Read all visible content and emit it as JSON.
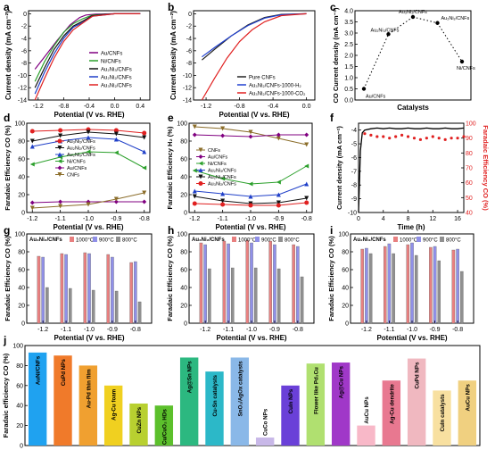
{
  "chart_data": [
    {
      "panel": "a",
      "type": "line",
      "xlabel": "Potential (V vs. RHE)",
      "ylabel": "Current density (mA cm⁻²)",
      "xlim": [
        -1.35,
        0.55
      ],
      "ylim": [
        -14,
        0.5
      ],
      "xticks": [
        -1.2,
        -0.8,
        -0.4,
        0.0,
        0.4
      ],
      "yticks": [
        0,
        -2,
        -4,
        -6,
        -8,
        -10,
        -12,
        -14
      ],
      "legend_position": "lower-right",
      "series": [
        {
          "name": "Au/CNFs",
          "color": "#800080",
          "x": [
            -1.25,
            -1.1,
            -0.9,
            -0.7,
            -0.55,
            -0.45,
            -0.3,
            0.0,
            0.4
          ],
          "y": [
            -9.0,
            -7.0,
            -4.3,
            -1.8,
            -0.6,
            -0.2,
            -0.05,
            0.0,
            0.0
          ]
        },
        {
          "name": "Ni/CNFs",
          "color": "#2ca02c",
          "x": [
            -1.25,
            -1.1,
            -0.95,
            -0.8,
            -0.65,
            -0.5,
            -0.35,
            0.0,
            0.4
          ],
          "y": [
            -11.0,
            -7.8,
            -5.2,
            -3.0,
            -1.6,
            -0.8,
            -0.2,
            0.0,
            0.0
          ]
        },
        {
          "name": "Au₂Ni₃/CNFs",
          "color": "#111111",
          "x": [
            -1.25,
            -1.1,
            -0.95,
            -0.8,
            -0.65,
            -0.5,
            -0.35,
            0.0,
            0.4
          ],
          "y": [
            -12.0,
            -8.8,
            -5.8,
            -3.6,
            -2.0,
            -1.2,
            -0.3,
            0.0,
            0.0
          ]
        },
        {
          "name": "Au₂Ni₂/CNFs",
          "color": "#1f3fc8",
          "x": [
            -1.25,
            -1.1,
            -0.95,
            -0.8,
            -0.65,
            -0.5,
            -0.35,
            0.0,
            0.4
          ],
          "y": [
            -13.0,
            -9.5,
            -6.5,
            -4.0,
            -2.2,
            -1.4,
            -0.4,
            0.0,
            0.0
          ]
        },
        {
          "name": "Au₃Ni₂/CNFs",
          "color": "#e02020",
          "x": [
            -1.25,
            -1.1,
            -0.95,
            -0.8,
            -0.65,
            -0.5,
            -0.35,
            0.0,
            0.4
          ],
          "y": [
            -14.0,
            -10.5,
            -7.2,
            -4.5,
            -2.6,
            -1.5,
            -0.4,
            0.0,
            0.0
          ]
        }
      ]
    },
    {
      "panel": "b",
      "type": "line",
      "xlabel": "Potential (V vs. RHE)",
      "ylabel": "Current density (mA cm⁻²)",
      "xlim": [
        -1.35,
        0.1
      ],
      "ylim": [
        -14,
        0.5
      ],
      "xticks": [
        -1.2,
        -0.8,
        -0.4,
        0.0
      ],
      "yticks": [
        0,
        -2,
        -4,
        -6,
        -8,
        -10,
        -12,
        -14
      ],
      "legend_position": "lower-right",
      "series": [
        {
          "name": "Pure CNFs",
          "color": "#222222",
          "x": [
            -1.25,
            -1.1,
            -0.9,
            -0.7,
            -0.5,
            -0.3,
            0.0
          ],
          "y": [
            -7.5,
            -5.8,
            -3.6,
            -1.8,
            -0.6,
            -0.1,
            0.0
          ]
        },
        {
          "name": "Au₃Ni₂/CNFs-1000-H₂",
          "color": "#2040d0",
          "x": [
            -1.25,
            -1.1,
            -0.9,
            -0.7,
            -0.5,
            -0.3,
            0.0
          ],
          "y": [
            -7.0,
            -5.5,
            -3.6,
            -1.9,
            -0.7,
            -0.15,
            0.0
          ]
        },
        {
          "name": "Au₃Ni₂/CNFs-1000-CO₂",
          "color": "#e02020",
          "x": [
            -1.25,
            -1.1,
            -0.95,
            -0.8,
            -0.65,
            -0.5,
            -0.3,
            0.0
          ],
          "y": [
            -14.0,
            -10.5,
            -7.2,
            -4.5,
            -2.6,
            -1.3,
            -0.3,
            0.0
          ]
        }
      ]
    },
    {
      "panel": "c",
      "type": "scatter",
      "xlabel": "Catalysts",
      "ylabel": "CO Current density (mA cm⁻²)",
      "ylim": [
        0,
        4.0
      ],
      "yticks": [
        0.0,
        0.5,
        1.0,
        1.5,
        2.0,
        2.5,
        3.0,
        3.5,
        4.0
      ],
      "categories": [
        "Au/CNFs",
        "Au₂Ni₃/CNFs",
        "Au₃Ni₂/CNFs",
        "Au₂Ni₂/CNFs",
        "Ni/CNFs"
      ],
      "values": [
        0.5,
        2.95,
        3.72,
        3.45,
        1.72
      ]
    },
    {
      "panel": "d",
      "type": "line",
      "xlabel": "Potential (V vs. RHE)",
      "ylabel": "Faradaic Efficiency CO (%)",
      "x": [
        -1.2,
        -1.1,
        -1.0,
        -0.9,
        -0.8
      ],
      "ylim": [
        0,
        100
      ],
      "yticks": [
        0,
        20,
        40,
        60,
        80,
        100
      ],
      "legend_position": "center-left",
      "series": [
        {
          "name": "Au₃Ni₂/CNFs",
          "color": "#e02020",
          "marker": "circle",
          "y": [
            91,
            92,
            93,
            92,
            89
          ]
        },
        {
          "name": "Au₂Ni₂/CNFs",
          "color": "#111111",
          "marker": "triangle-down",
          "y": [
            80,
            86,
            90,
            88,
            84
          ]
        },
        {
          "name": "Au₂Ni₃/CNFs",
          "color": "#1f3fc8",
          "marker": "triangle",
          "y": [
            74,
            80,
            84,
            82,
            68
          ]
        },
        {
          "name": "Ni/CNFs",
          "color": "#2ca02c",
          "marker": "triangle-left",
          "y": [
            54,
            62,
            68,
            67,
            50
          ]
        },
        {
          "name": "Au/CNFs",
          "color": "#800080",
          "marker": "diamond",
          "y": [
            11,
            12,
            12,
            12,
            12
          ]
        },
        {
          "name": "CNFs",
          "color": "#8b6d2a",
          "marker": "triangle-down",
          "y": [
            5,
            7,
            9,
            15,
            22
          ]
        }
      ]
    },
    {
      "panel": "e",
      "type": "line",
      "xlabel": "Potential (V vs. RHE)",
      "ylabel": "Faradaic Efficiency H₂ (%)",
      "x": [
        -1.2,
        -1.1,
        -1.0,
        -0.9,
        -0.8
      ],
      "ylim": [
        0,
        100
      ],
      "yticks": [
        0,
        20,
        40,
        60,
        80,
        100
      ],
      "legend_position": "top-left",
      "series": [
        {
          "name": "CNFs",
          "color": "#8b6d2a",
          "marker": "triangle-down",
          "y": [
            96,
            94,
            90,
            83,
            76
          ]
        },
        {
          "name": "Au/CNFs",
          "color": "#800080",
          "marker": "diamond",
          "y": [
            87,
            86,
            85,
            87,
            87
          ]
        },
        {
          "name": "Ni/CNFs",
          "color": "#2ca02c",
          "marker": "triangle-left",
          "y": [
            47,
            38,
            32,
            34,
            52
          ]
        },
        {
          "name": "Au₂Ni₃/CNFs",
          "color": "#1f3fc8",
          "marker": "triangle",
          "y": [
            24,
            21,
            18,
            20,
            32
          ]
        },
        {
          "name": "Au₂Ni₂/CNFs",
          "color": "#111111",
          "marker": "triangle-down",
          "y": [
            18,
            13,
            10,
            11,
            16
          ]
        },
        {
          "name": "Au₃Ni₂/CNFs",
          "color": "#e02020",
          "marker": "circle",
          "y": [
            10,
            9,
            8,
            8,
            11
          ]
        }
      ]
    },
    {
      "panel": "f",
      "type": "line",
      "xlabel": "Time (h)",
      "ylabel": "Current density (mA cm⁻²)",
      "ylabel_right": "Faradaic Efficiency CO (%)",
      "xlim": [
        0,
        17
      ],
      "ylim": [
        -10,
        -3.5
      ],
      "ylim_right": [
        40,
        100
      ],
      "xticks": [
        0,
        4,
        8,
        12,
        16
      ],
      "yticks": [
        -4,
        -5,
        -6,
        -7,
        -8,
        -9,
        -10
      ],
      "yticks_right": [
        40,
        50,
        60,
        70,
        80,
        90,
        100
      ],
      "current_x": [
        0,
        0.3,
        0.6,
        1,
        2,
        3,
        4,
        5,
        6,
        7,
        8,
        9,
        10,
        11,
        12,
        13,
        14,
        15,
        16,
        17
      ],
      "current_y": [
        -10,
        -5.5,
        -4.2,
        -4.0,
        -3.9,
        -3.85,
        -3.9,
        -3.85,
        -3.9,
        -3.9,
        -3.85,
        -3.9,
        -3.9,
        -3.85,
        -3.9,
        -3.9,
        -3.85,
        -3.9,
        -3.9,
        -3.85
      ],
      "fe_x": [
        1,
        2,
        3,
        4,
        5,
        6,
        7,
        8,
        9,
        10,
        11,
        12,
        13,
        14,
        15,
        16,
        17
      ],
      "fe_y": [
        93,
        92,
        91,
        91,
        90,
        91,
        92,
        91,
        90,
        89,
        90,
        91,
        90,
        89,
        90,
        90,
        91
      ]
    },
    {
      "panel": "g",
      "type": "bar",
      "title": "Au₃Ni₂/CNFs",
      "xlabel": "Potential (V vs. RHE)",
      "ylabel": "Faradaic Efficiency CO (%)",
      "categories": [
        "-1.2",
        "-1.1",
        "-1.0",
        "-0.9",
        "-0.8"
      ],
      "ylim": [
        0,
        100
      ],
      "yticks": [
        0,
        20,
        40,
        60,
        80,
        100
      ],
      "series": [
        {
          "name": "1000°C",
          "color": "#e88080",
          "values": [
            75,
            78,
            79,
            77,
            68
          ]
        },
        {
          "name": "900°C",
          "color": "#9090e8",
          "values": [
            74,
            77,
            78,
            74,
            69
          ]
        },
        {
          "name": "800°C",
          "color": "#909090",
          "values": [
            40,
            39,
            37,
            36,
            24
          ]
        }
      ]
    },
    {
      "panel": "h",
      "type": "bar",
      "title": "Au₂Ni₂/CNFs",
      "xlabel": "Potential (V vs. RHE)",
      "ylabel": "Faradaic Efficiency CO (%)",
      "categories": [
        "-1.2",
        "-1.1",
        "-1.0",
        "-0.9",
        "-0.8"
      ],
      "ylim": [
        0,
        100
      ],
      "yticks": [
        0,
        20,
        40,
        60,
        80,
        100
      ],
      "series": [
        {
          "name": "1000°C",
          "color": "#e88080",
          "values": [
            90,
            92,
            93,
            92,
            88
          ]
        },
        {
          "name": "900°C",
          "color": "#9090e8",
          "values": [
            88,
            89,
            90,
            88,
            86
          ]
        },
        {
          "name": "800°C",
          "color": "#909090",
          "values": [
            61,
            62,
            62,
            61,
            52
          ]
        }
      ]
    },
    {
      "panel": "i",
      "type": "bar",
      "title": "Au₂Ni₃/CNFs",
      "xlabel": "Potential (V vs. RHE)",
      "ylabel": "Faradaic Efficiency CO (%)",
      "categories": [
        "-1.2",
        "-1.1",
        "-1.0",
        "-0.9",
        "-0.8"
      ],
      "ylim": [
        0,
        100
      ],
      "yticks": [
        0,
        20,
        40,
        60,
        80,
        100
      ],
      "series": [
        {
          "name": "1000°C",
          "color": "#e88080",
          "values": [
            83,
            86,
            88,
            85,
            82
          ]
        },
        {
          "name": "900°C",
          "color": "#9090e8",
          "values": [
            84,
            89,
            90,
            86,
            83
          ]
        },
        {
          "name": "800°C",
          "color": "#909090",
          "values": [
            78,
            78,
            76,
            70,
            58
          ]
        }
      ]
    },
    {
      "panel": "j",
      "type": "bar",
      "ylabel": "Faradaic efficiency CO (%)",
      "ylim": [
        0,
        100
      ],
      "yticks": [
        0,
        20,
        40,
        60,
        80,
        100
      ],
      "categories": [
        "AuNi/CNFs",
        "CuPd NPs",
        "Au-Pd thin film",
        "Ag-Cu foam",
        "CuZn NPs",
        "Cu/CuO₂ HDs",
        "Ag@Sn NPs",
        "Cu-Sn catalysts",
        "SnO₂/AgOx catalysts",
        "CuCo NPs",
        "CuIn NPs",
        "Flower like Pd₃Cu",
        "Ag@Cu NPs",
        "AuCu NPs",
        "Ag-Cu dendrite",
        "CuPd NPs",
        "CuIn catalysts",
        "AuCu NPs"
      ],
      "values": [
        93,
        90,
        80,
        60,
        42,
        40,
        88,
        74,
        88,
        8,
        60,
        82,
        83,
        20,
        65,
        87,
        55,
        65
      ],
      "colors": [
        "#1fa2f0",
        "#f07a2a",
        "#f0a030",
        "#f0d020",
        "#b8d030",
        "#5cc02c",
        "#2cb880",
        "#2cb8c8",
        "#8ab8e8",
        "#c8b8e8",
        "#6a40d8",
        "#b0e070",
        "#a038c8",
        "#f8b8c8",
        "#e87890",
        "#f0b8c0",
        "#f8e0a0",
        "#f0d080"
      ]
    }
  ],
  "panel_letters": [
    "a",
    "b",
    "c",
    "d",
    "e",
    "f",
    "g",
    "h",
    "i",
    "j"
  ]
}
